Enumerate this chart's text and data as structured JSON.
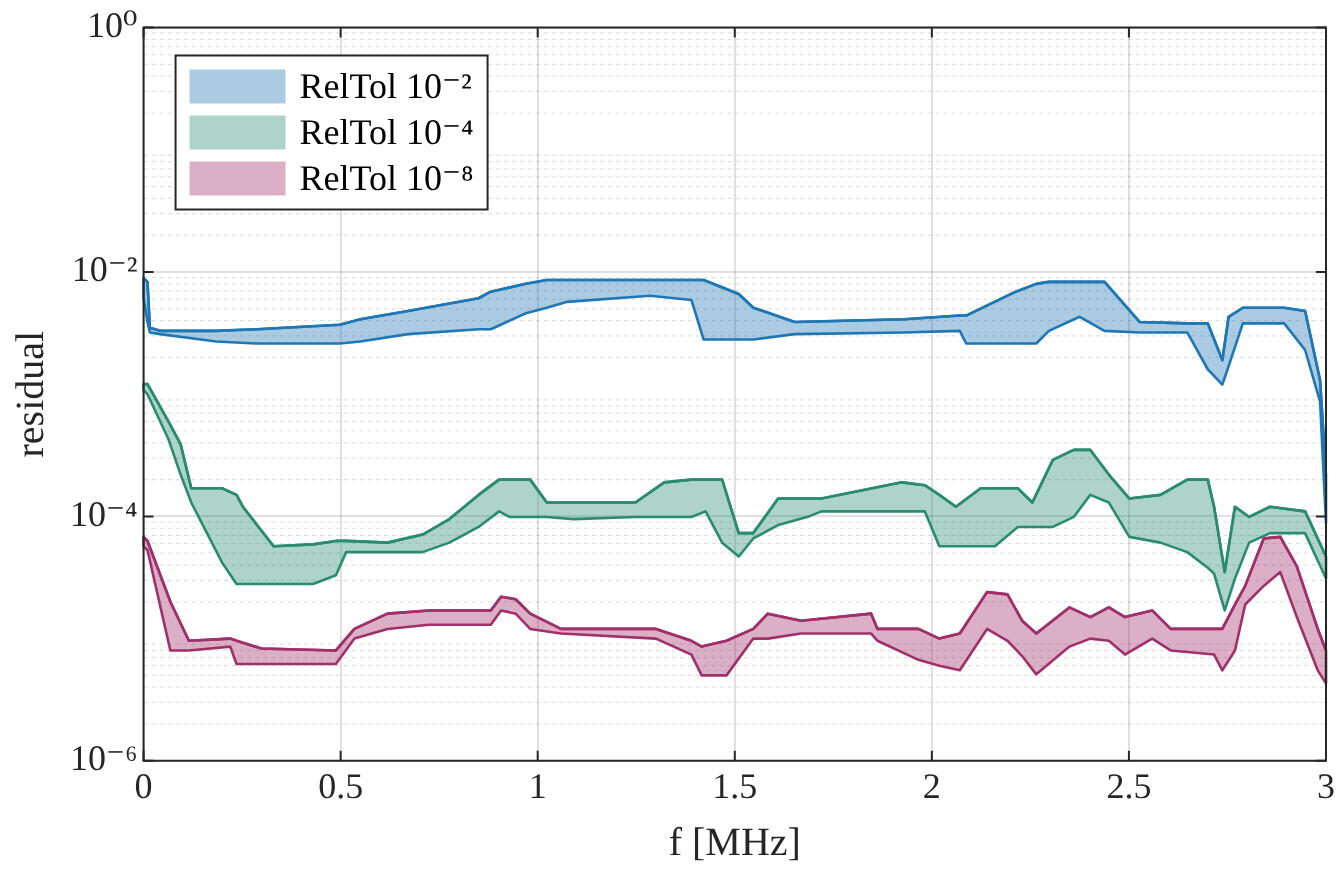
{
  "chart_data": {
    "type": "line",
    "xlabel": "f [MHz]",
    "ylabel": "residual",
    "log": "y",
    "grid": true,
    "legend": "top left",
    "marker": "none",
    "xlim": [
      0,
      3
    ],
    "xticks": [
      0,
      0.5,
      1,
      1.5,
      2,
      2.5,
      3
    ],
    "ylim": [
      1e-06,
      1
    ],
    "yticks": [
      {
        "value": 1e-06,
        "label": "10⁻⁶"
      },
      {
        "value": 0.0001,
        "label": "10⁻⁴"
      },
      {
        "value": 0.01,
        "label": "10⁻²"
      },
      {
        "value": 1,
        "label": "10⁰"
      }
    ],
    "series": [
      {
        "name": "RelTol 10⁻²",
        "color": "#1f77b4",
        "x": [
          0,
          0.01,
          0.016,
          0.042,
          0.184,
          0.288,
          0.498,
          0.55,
          0.671,
          0.85,
          0.881,
          0.97,
          1.023,
          1.075,
          1.285,
          1.39,
          1.421,
          1.51,
          1.547,
          1.652,
          1.93,
          2.071,
          2.087,
          2.213,
          2.265,
          2.297,
          2.375,
          2.438,
          2.527,
          2.648,
          2.7,
          2.737,
          2.753,
          2.789,
          2.894,
          2.947,
          2.985,
          3.0
        ],
        "values": [
          0.0089,
          0.0083,
          0.0035,
          0.0033,
          0.0033,
          0.0034,
          0.0037,
          0.0041,
          0.0048,
          0.0061,
          0.0069,
          0.008,
          0.0086,
          0.0086,
          0.0086,
          0.0086,
          0.0086,
          0.0066,
          0.0051,
          0.0039,
          0.0041,
          0.0044,
          0.0044,
          0.0069,
          0.008,
          0.0083,
          0.0083,
          0.0083,
          0.0039,
          0.0038,
          0.0038,
          0.0019,
          0.0043,
          0.0051,
          0.0051,
          0.0048,
          0.0013,
          0.00022
        ],
        "upper": [
          0.0089,
          0.0083,
          0.0035,
          0.0033,
          0.0033,
          0.0034,
          0.0037,
          0.0041,
          0.0048,
          0.0061,
          0.0069,
          0.008,
          0.0086,
          0.0086,
          0.0086,
          0.0086,
          0.0086,
          0.0066,
          0.0051,
          0.0039,
          0.0041,
          0.0044,
          0.0044,
          0.0069,
          0.008,
          0.0083,
          0.0083,
          0.0083,
          0.0039,
          0.0038,
          0.0038,
          0.0019,
          0.0043,
          0.0051,
          0.0051,
          0.0048,
          0.0013,
          0.00022
        ],
        "lower": [
          0.0061,
          0.0039,
          0.0032,
          0.0031,
          0.0027,
          0.0026,
          0.0026,
          0.0027,
          0.0031,
          0.0034,
          0.0034,
          0.0046,
          0.0051,
          0.0057,
          0.0064,
          0.0059,
          0.0028,
          0.0028,
          0.0028,
          0.0031,
          0.0032,
          0.0033,
          0.0026,
          0.0026,
          0.0026,
          0.0033,
          0.0043,
          0.0033,
          0.0032,
          0.0032,
          0.0016,
          0.0012,
          0.0017,
          0.0038,
          0.0038,
          0.0023,
          0.00087,
          8.8e-05
        ]
      },
      {
        "name": "RelTol 10⁻⁴",
        "color": "#2a8c6e",
        "x": [
          0,
          0.01,
          0.063,
          0.094,
          0.121,
          0.199,
          0.236,
          0.252,
          0.33,
          0.43,
          0.488,
          0.514,
          0.619,
          0.708,
          0.776,
          0.85,
          0.902,
          0.928,
          0.981,
          1.023,
          1.091,
          1.248,
          1.321,
          1.39,
          1.426,
          1.468,
          1.51,
          1.547,
          1.61,
          1.688,
          1.72,
          1.924,
          1.982,
          2.019,
          2.061,
          2.124,
          2.16,
          2.218,
          2.255,
          2.307,
          2.36,
          2.402,
          2.449,
          2.501,
          2.58,
          2.648,
          2.7,
          2.716,
          2.743,
          2.769,
          2.805,
          2.858,
          2.947,
          3.0
        ],
        "values": [
          0.00121,
          0.00121,
          0.0006,
          0.00039,
          0.00017,
          0.00017,
          0.00015,
          0.00012,
          5.7e-05,
          5.9e-05,
          6.3e-05,
          6.3e-05,
          6.1e-05,
          7.1e-05,
          9.5e-05,
          0.00015,
          0.0002,
          0.0002,
          0.0002,
          0.00013,
          0.00013,
          0.00013,
          0.00019,
          0.0002,
          0.0002,
          0.0002,
          7.3e-05,
          7.3e-05,
          0.00014,
          0.00014,
          0.00014,
          0.00019,
          0.00018,
          0.00015,
          0.00012,
          0.00017,
          0.00017,
          0.00017,
          0.00013,
          0.00029,
          0.00035,
          0.00035,
          0.00022,
          0.00014,
          0.00015,
          0.0002,
          0.0002,
          0.00012,
          3.5e-05,
          0.00012,
          9.9e-05,
          0.00012,
          0.00011,
          4.7e-05
        ],
        "upper": [
          0.00121,
          0.00121,
          0.0006,
          0.00039,
          0.00017,
          0.00017,
          0.00015,
          0.00012,
          5.7e-05,
          5.9e-05,
          6.3e-05,
          6.3e-05,
          6.1e-05,
          7.1e-05,
          9.5e-05,
          0.00015,
          0.0002,
          0.0002,
          0.0002,
          0.00013,
          0.00013,
          0.00013,
          0.00019,
          0.0002,
          0.0002,
          0.0002,
          7.3e-05,
          7.3e-05,
          0.00014,
          0.00014,
          0.00014,
          0.00019,
          0.00018,
          0.00015,
          0.00012,
          0.00017,
          0.00017,
          0.00017,
          0.00013,
          0.00029,
          0.00035,
          0.00035,
          0.00022,
          0.00014,
          0.00015,
          0.0002,
          0.0002,
          0.00012,
          3.5e-05,
          0.00012,
          9.9e-05,
          0.00012,
          0.00011,
          4.7e-05
        ],
        "lower": [
          0.00108,
          0.001,
          0.00043,
          0.00022,
          0.00013,
          4.2e-05,
          2.8e-05,
          2.8e-05,
          2.8e-05,
          2.8e-05,
          3.3e-05,
          5.1e-05,
          5.1e-05,
          5.1e-05,
          6.1e-05,
          8.2e-05,
          0.00011,
          9.9e-05,
          9.9e-05,
          9.9e-05,
          9.5e-05,
          9.9e-05,
          9.9e-05,
          9.9e-05,
          0.00011,
          6.1e-05,
          4.7e-05,
          6.6e-05,
          8.5e-05,
          0.0001,
          0.00011,
          0.00011,
          0.00011,
          5.7e-05,
          5.7e-05,
          5.7e-05,
          5.7e-05,
          8.2e-05,
          8.2e-05,
          8.2e-05,
          9.9e-05,
          0.00015,
          0.00013,
          6.8e-05,
          6.1e-05,
          5.1e-05,
          3.8e-05,
          3.4e-05,
          1.7e-05,
          3.1e-05,
          6.1e-05,
          7.3e-05,
          7.3e-05,
          3.1e-05
        ]
      },
      {
        "name": "RelTol 10⁻⁸",
        "color": "#a0306a",
        "x": [
          0,
          0.01,
          0.068,
          0.115,
          0.22,
          0.236,
          0.299,
          0.488,
          0.535,
          0.619,
          0.724,
          0.881,
          0.907,
          0.944,
          0.981,
          1.059,
          1.3,
          1.39,
          1.416,
          1.479,
          1.547,
          1.584,
          1.668,
          1.846,
          1.862,
          1.966,
          2.019,
          2.071,
          2.14,
          2.192,
          2.229,
          2.265,
          2.349,
          2.402,
          2.449,
          2.49,
          2.559,
          2.606,
          2.716,
          2.737,
          2.769,
          2.795,
          2.842,
          2.884,
          2.926,
          2.979,
          3.0
        ],
        "values": [
          6.8e-05,
          6.3e-05,
          2e-05,
          9.6e-06,
          1e-05,
          9.6e-06,
          8.3e-06,
          8e-06,
          1.2e-05,
          1.6e-05,
          1.7e-05,
          1.7e-05,
          2.2e-05,
          2.1e-05,
          1.6e-05,
          1.2e-05,
          1.2e-05,
          9.6e-06,
          8.6e-06,
          9.6e-06,
          1.2e-05,
          1.6e-05,
          1.4e-05,
          1.6e-05,
          1.2e-05,
          1.2e-05,
          1e-05,
          1.1e-05,
          2.4e-05,
          2.3e-05,
          1.4e-05,
          1.1e-05,
          1.8e-05,
          1.5e-05,
          1.8e-05,
          1.5e-05,
          1.7e-05,
          1.2e-05,
          1.2e-05,
          1.2e-05,
          1.9e-05,
          2.7e-05,
          6.6e-05,
          6.8e-05,
          3.9e-05,
          1.2e-05,
          8e-06
        ],
        "upper": [
          6.8e-05,
          6.3e-05,
          2e-05,
          9.6e-06,
          1e-05,
          9.6e-06,
          8.3e-06,
          8e-06,
          1.2e-05,
          1.6e-05,
          1.7e-05,
          1.7e-05,
          2.2e-05,
          2.1e-05,
          1.6e-05,
          1.2e-05,
          1.2e-05,
          9.6e-06,
          8.6e-06,
          9.6e-06,
          1.2e-05,
          1.6e-05,
          1.4e-05,
          1.6e-05,
          1.2e-05,
          1.2e-05,
          1e-05,
          1.1e-05,
          2.4e-05,
          2.3e-05,
          1.4e-05,
          1.1e-05,
          1.8e-05,
          1.5e-05,
          1.8e-05,
          1.5e-05,
          1.7e-05,
          1.2e-05,
          1.2e-05,
          1.2e-05,
          1.9e-05,
          2.7e-05,
          6.6e-05,
          6.8e-05,
          3.9e-05,
          1.2e-05,
          8e-06
        ],
        "lower": [
          5.7e-05,
          5.3e-05,
          8e-06,
          8e-06,
          8.6e-06,
          6.2e-06,
          6.2e-06,
          6.2e-06,
          1e-05,
          1.2e-05,
          1.3e-05,
          1.3e-05,
          1.7e-05,
          1.6e-05,
          1.2e-05,
          1.1e-05,
          1e-05,
          7.4e-06,
          5e-06,
          5e-06,
          1e-05,
          1e-05,
          1.1e-05,
          1.1e-05,
          9.6e-06,
          6.7e-06,
          6e-06,
          5.5e-06,
          1.2e-05,
          9.6e-06,
          7.2e-06,
          5.1e-06,
          8.6e-06,
          1e-05,
          9.6e-06,
          7.4e-06,
          1e-05,
          8e-06,
          7.4e-06,
          5.5e-06,
          8e-06,
          1.9e-05,
          2.7e-05,
          3.5e-05,
          1.5e-05,
          5.5e-06,
          4.3e-06
        ]
      }
    ]
  }
}
